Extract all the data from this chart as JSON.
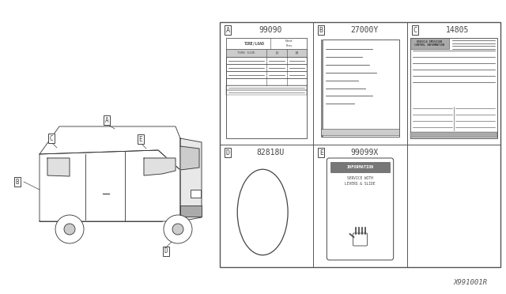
{
  "bg_color": "#ffffff",
  "grid_line_color": "#555555",
  "line_color": "#444444",
  "watermark": "X991001R",
  "parts": [
    {
      "id": "A",
      "code": "99090",
      "col": 0,
      "row": 1
    },
    {
      "id": "B",
      "code": "27000Y",
      "col": 1,
      "row": 1
    },
    {
      "id": "C",
      "code": "14805",
      "col": 2,
      "row": 1
    },
    {
      "id": "D",
      "code": "82818U",
      "col": 0,
      "row": 0
    },
    {
      "id": "E",
      "code": "99099X",
      "col": 1,
      "row": 0
    }
  ]
}
